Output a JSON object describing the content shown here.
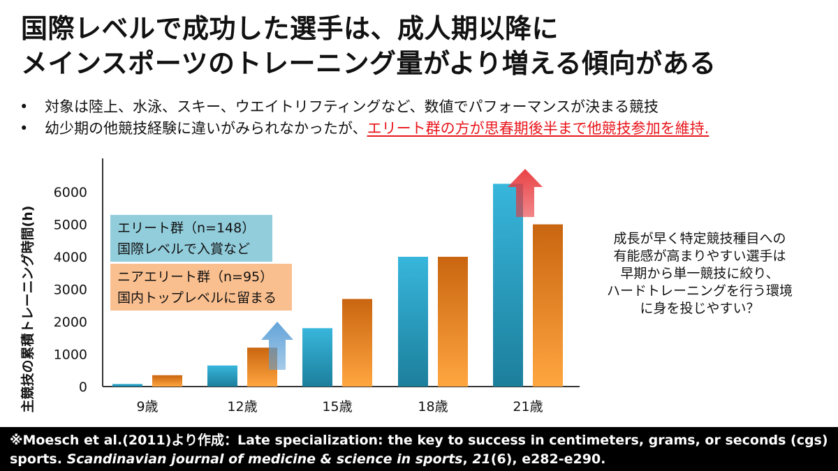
{
  "title": {
    "line1": "国際レベルで成功した選手は、成人期以降に",
    "line2": "メインスポーツのトレーニング量がより増える傾向がある"
  },
  "bullets": {
    "marker": "•",
    "b1": "対象は陸上、水泳、スキー、ウエイトリフティングなど、数値でパフォーマンスが決まる競技",
    "b2_plain": "幼少期の他競技経験に違いがみられなかったが、",
    "b2_highlight": "エリート群の方が思春期後半まで他競技参加を維持."
  },
  "legend": {
    "elite_line1": "エリート群（n=148）",
    "elite_line2": "国際レベルで入賞など",
    "near_line1": "ニアエリート群（n=95）",
    "near_line2": "国内トップレベルに留まる"
  },
  "side_note": {
    "line1": "成長が早く特定競技種目への",
    "line2": "有能感が高まりやすい選手は",
    "line3": "早期から単一競技に絞り、",
    "line4": "ハードトレーニングを行う環境",
    "line5": "に身を投じやすい？"
  },
  "footer": {
    "line1": "※Moesch et al.(2011)より作成：Late specialization: the key to success in centimeters, grams, or seconds (cgs)",
    "line2_a": "sports. ",
    "line2_journal": "Scandinavian journal of medicine & science in sports",
    "line2_b": ", ",
    "line2_vol": "21",
    "line2_c": "(6), e282-e290."
  },
  "colors": {
    "elite": "#2fa8cc",
    "near_elite": "#f08a24",
    "highlight": "#e8141a",
    "arrow_blue": "#5b9fd6",
    "arrow_red": "#e8383c",
    "legend_elite_bg": "#92cddc",
    "legend_near_bg": "#fabf8f"
  },
  "chart_data": {
    "type": "bar",
    "ylabel": "主競技の累積トレーニング時間(h)",
    "categories": [
      "9歳",
      "12歳",
      "15歳",
      "18歳",
      "21歳"
    ],
    "series": [
      {
        "name": "エリート群",
        "values": [
          80,
          650,
          1800,
          4000,
          6250
        ]
      },
      {
        "name": "ニアエリート群",
        "values": [
          350,
          1200,
          2700,
          4000,
          5000
        ]
      }
    ],
    "ylim": [
      0,
      7000
    ],
    "yticks": [
      "0",
      "1000",
      "2000",
      "3000",
      "4000",
      "5000",
      "6000"
    ],
    "annotations": [
      {
        "type": "up-arrow",
        "color": "arrow_blue",
        "category": "12歳"
      },
      {
        "type": "up-arrow",
        "color": "arrow_red",
        "category": "21歳"
      }
    ]
  }
}
